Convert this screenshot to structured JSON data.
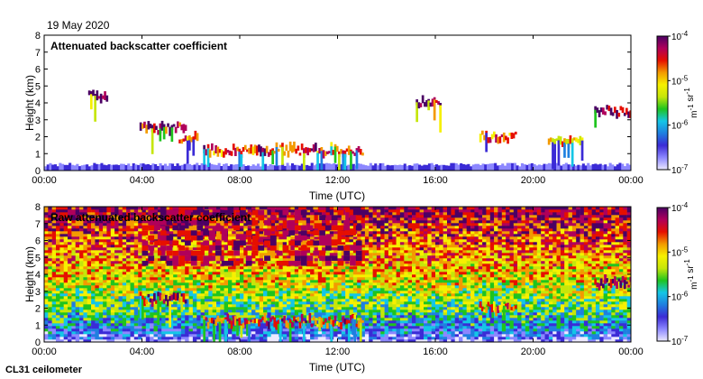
{
  "date_label": "19 May 2020",
  "instrument_label": "CL31 ceilometer",
  "colors": {
    "ramp": [
      "#ece9ff",
      "#8c87ff",
      "#3b2bd6",
      "#1f7fe0",
      "#14c6e6",
      "#1fc41f",
      "#c6e60a",
      "#f6f000",
      "#f39a00",
      "#e60f00",
      "#b0005a",
      "#4b0064"
    ]
  },
  "chart_data": [
    {
      "type": "heatmap",
      "title": "Attenuated backscatter coefficient",
      "xlabel": "Time (UTC)",
      "ylabel": "Height (km)",
      "x_ticks": [
        "00:00",
        "04:00",
        "08:00",
        "12:00",
        "16:00",
        "20:00",
        "00:00"
      ],
      "y_ticks": [
        "0",
        "1",
        "2",
        "3",
        "4",
        "5",
        "6",
        "7",
        "8"
      ],
      "xlim_hours": [
        0,
        24
      ],
      "ylim_km": [
        0,
        8
      ],
      "colorbar": {
        "scale": "log",
        "range": [
          1e-07,
          0.0001
        ],
        "tick_labels": [
          "10^-7",
          "10^-6",
          "10^-5",
          "10^-4"
        ],
        "unit": "m^-1 sr^-1"
      },
      "features": [
        {
          "kind": "boundary_layer",
          "t_start": 0,
          "t_end": 24,
          "z_top_km": 0.35,
          "log10_value": -6.5
        },
        {
          "kind": "cloud",
          "t_start": 1.8,
          "t_end": 2.6,
          "z_km": 4.35,
          "log10_value": -4.2
        },
        {
          "kind": "cloud",
          "t_start": 3.9,
          "t_end": 5.8,
          "z_km": 2.5,
          "log10_value": -4.6
        },
        {
          "kind": "cloud",
          "t_start": 5.5,
          "t_end": 6.3,
          "z_km": 1.9,
          "log10_value": -5.0
        },
        {
          "kind": "cloud",
          "t_start": 6.5,
          "t_end": 13.0,
          "z_km": 1.2,
          "log10_value": -4.8
        },
        {
          "kind": "cloud",
          "t_start": 15.2,
          "t_end": 16.2,
          "z_km": 4.0,
          "log10_value": -4.3
        },
        {
          "kind": "cloud",
          "t_start": 17.8,
          "t_end": 19.3,
          "z_km": 2.0,
          "log10_value": -5.0
        },
        {
          "kind": "cloud",
          "t_start": 20.6,
          "t_end": 22.0,
          "z_km": 1.7,
          "log10_value": -5.2
        },
        {
          "kind": "cloud",
          "t_start": 22.5,
          "t_end": 24.0,
          "z_km": 3.5,
          "log10_value": -4.5
        }
      ]
    },
    {
      "type": "heatmap",
      "title": "Raw attenuated backscatter coefficient",
      "xlabel": "Time (UTC)",
      "ylabel": "Height (km)",
      "x_ticks": [
        "00:00",
        "04:00",
        "08:00",
        "12:00",
        "16:00",
        "20:00",
        "00:00"
      ],
      "y_ticks": [
        "0",
        "1",
        "2",
        "3",
        "4",
        "5",
        "6",
        "7",
        "8"
      ],
      "xlim_hours": [
        0,
        24
      ],
      "ylim_km": [
        0,
        8
      ],
      "colorbar": {
        "scale": "log",
        "range": [
          1e-07,
          0.0001
        ],
        "tick_labels": [
          "10^-7",
          "10^-6",
          "10^-5",
          "10^-4"
        ],
        "unit": "m^-1 sr^-1"
      },
      "features": [
        {
          "kind": "noise_background",
          "t_start": 0,
          "t_end": 24,
          "z_from_km": 0,
          "z_to_km": 8,
          "log10_value_low": -6.8,
          "log10_value_high": -4.3
        },
        {
          "kind": "high_noise_band",
          "t_start": 4.0,
          "t_end": 13.0,
          "log10_value": -4.4
        },
        {
          "kind": "cloud",
          "t_start": 3.9,
          "t_end": 5.8,
          "z_km": 2.5,
          "log10_value": -4.6
        },
        {
          "kind": "cloud",
          "t_start": 6.5,
          "t_end": 13.0,
          "z_km": 1.2,
          "log10_value": -4.8
        },
        {
          "kind": "cloud",
          "t_start": 17.8,
          "t_end": 19.3,
          "z_km": 2.0,
          "log10_value": -5.0
        },
        {
          "kind": "cloud",
          "t_start": 22.5,
          "t_end": 24.0,
          "z_km": 3.5,
          "log10_value": -4.5
        }
      ]
    }
  ]
}
